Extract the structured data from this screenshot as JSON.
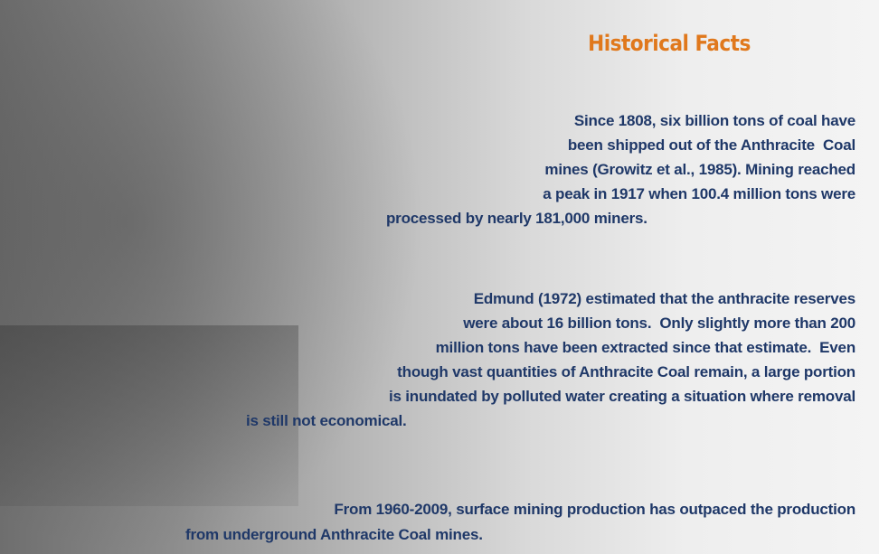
{
  "title": "Historical Facts",
  "paragraphs": [
    [
      "Since 1808, six billion tons of coal have",
      "been shipped out of the Anthracite  Coal",
      "mines (Growitz et al., 1985). Mining reached",
      "a peak in 1917 when 100.4 million tons were",
      "processed by nearly 181,000 miners."
    ],
    [
      "Edmund (1972) estimated that the anthracite reserves",
      "were about 16 billion tons.  Only slightly more than 200",
      "million tons have been extracted since that estimate.  Even",
      "though vast quantities of Anthracite Coal remain, a large portion",
      "is inundated by polluted water creating a situation where removal",
      "is still not economical."
    ],
    [
      "From 1960-2009, surface mining production has outpaced the production",
      "from underground Anthracite Coal mines."
    ]
  ]
}
